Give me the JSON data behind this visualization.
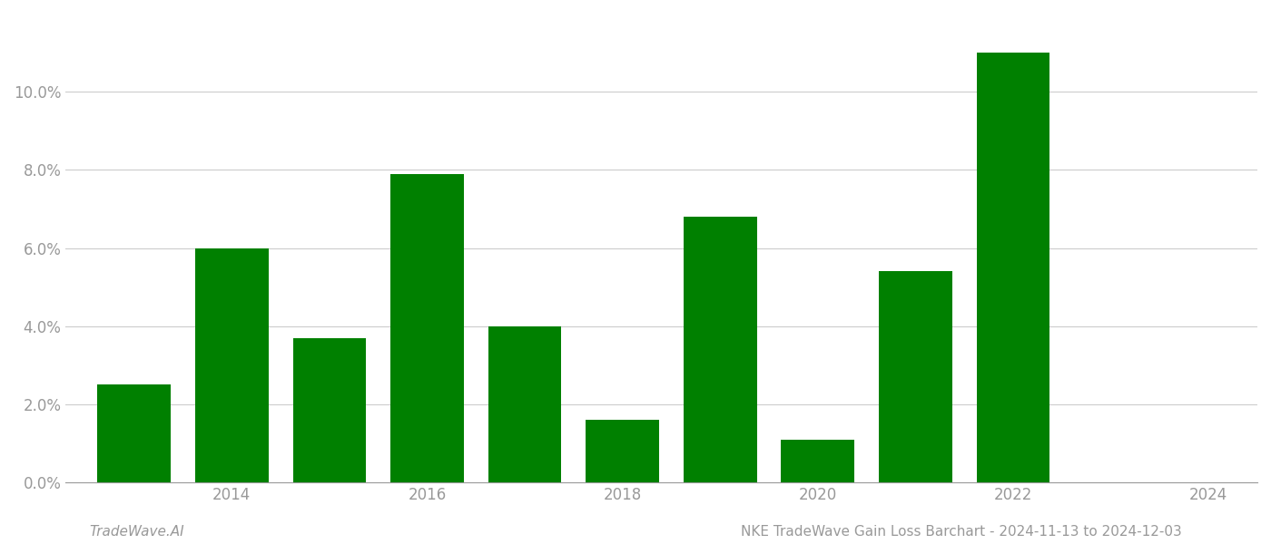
{
  "years": [
    2013,
    2014,
    2015,
    2016,
    2017,
    2018,
    2019,
    2020,
    2021,
    2022
  ],
  "values": [
    0.025,
    0.06,
    0.037,
    0.079,
    0.04,
    0.016,
    0.068,
    0.011,
    0.054,
    0.11
  ],
  "bar_color": "#008000",
  "background_color": "#ffffff",
  "grid_color": "#cccccc",
  "axis_label_color": "#999999",
  "footer_left": "TradeWave.AI",
  "footer_right": "NKE TradeWave Gain Loss Barchart - 2024-11-13 to 2024-12-03",
  "footer_fontsize": 11,
  "ylim": [
    0,
    0.12
  ],
  "yticks": [
    0.0,
    0.02,
    0.04,
    0.06,
    0.08,
    0.1
  ],
  "xtick_labels": [
    "2014",
    "2016",
    "2018",
    "2020",
    "2022",
    "2024"
  ],
  "xtick_positions": [
    2014,
    2016,
    2018,
    2020,
    2022,
    2024
  ],
  "xlim": [
    2012.3,
    2024.5
  ],
  "bar_width": 0.75
}
